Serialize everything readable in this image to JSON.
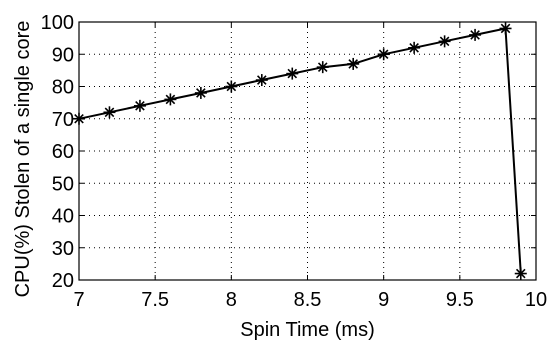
{
  "chart_data": {
    "type": "line",
    "xlabel": "Spin Time (ms)",
    "ylabel": "CPU(%) Stolen of a single core",
    "xlim": [
      7,
      10
    ],
    "ylim": [
      20,
      100
    ],
    "xticks": [
      7,
      7.5,
      8,
      8.5,
      9,
      9.5,
      10
    ],
    "xtick_labels": [
      "7",
      "7.5",
      "8",
      "8.5",
      "9",
      "9.5",
      "10"
    ],
    "yticks": [
      20,
      30,
      40,
      50,
      60,
      70,
      80,
      90,
      100
    ],
    "ytick_labels": [
      "20",
      "30",
      "40",
      "50",
      "60",
      "70",
      "80",
      "90",
      "100"
    ],
    "grid": true,
    "legend": "none",
    "series": [
      {
        "marker": "asterisk",
        "color": "#000000",
        "x": [
          7.0,
          7.2,
          7.4,
          7.6,
          7.8,
          8.0,
          8.2,
          8.4,
          8.6,
          8.8,
          9.0,
          9.2,
          9.4,
          9.6,
          9.8,
          9.9
        ],
        "y": [
          70,
          72,
          74,
          76,
          78,
          80,
          82,
          84,
          86,
          87,
          90,
          92,
          94,
          96,
          98,
          22
        ]
      }
    ]
  }
}
